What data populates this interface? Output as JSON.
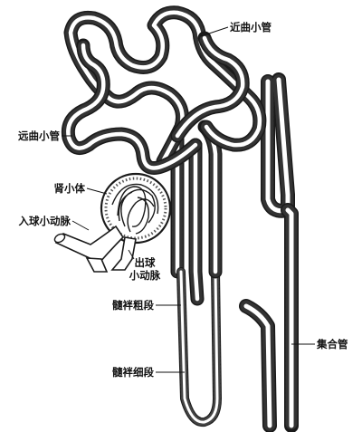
{
  "labels": {
    "proximal_convoluted_top": "近曲小管",
    "distal_convoluted": "远曲小管",
    "renal_corpuscle": "肾小体",
    "afferent_arteriole": "入球小动脉",
    "efferent_arteriole_line1": "出球",
    "efferent_arteriole_line2": "小动脉",
    "loop_thick_segment": "髓袢粗段",
    "loop_thin_segment": "髓袢细段",
    "collecting_duct": "集合管"
  }
}
